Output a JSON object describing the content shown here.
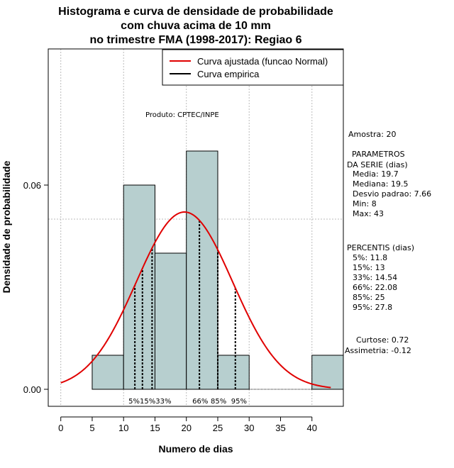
{
  "chart_data": {
    "type": "histogram",
    "title_lines": [
      "Histograma e curva de densidade de probabilidade",
      "com chuva acima de 10 mm",
      "no trimestre FMA (1998-2017): Regiao 6"
    ],
    "xlabel": "Numero de dias",
    "ylabel": "Densidade de probabilidade",
    "xlim": [
      -2,
      45
    ],
    "ylim": [
      -0.005,
      0.1
    ],
    "x_ticks": [
      0,
      5,
      10,
      15,
      20,
      25,
      30,
      35,
      40
    ],
    "x_tick_labels": [
      "0",
      "5",
      "10",
      "15",
      "20",
      "25",
      "30",
      "35",
      "40"
    ],
    "y_ticks": [
      0.0,
      0.06
    ],
    "y_tick_labels": [
      "0.00",
      "0.06"
    ],
    "grid_x": [
      0,
      10,
      20,
      30,
      40
    ],
    "grid_y": [
      0.05,
      0.1
    ],
    "bins": [
      {
        "start": 5,
        "end": 10,
        "density": 0.01
      },
      {
        "start": 10,
        "end": 15,
        "density": 0.06
      },
      {
        "start": 15,
        "end": 20,
        "density": 0.04
      },
      {
        "start": 20,
        "end": 25,
        "density": 0.07
      },
      {
        "start": 25,
        "end": 30,
        "density": 0.01
      },
      {
        "start": 40,
        "end": 45,
        "density": 0.01
      }
    ],
    "bar_color": "#b7cfcf",
    "normal_curve": {
      "name": "Curva ajustada (funcao Normal)",
      "mean": 19.7,
      "sd": 7.66,
      "x_from": 0,
      "x_to": 43,
      "color": "#e00000"
    },
    "percentile_lines": [
      {
        "label": "5%",
        "value": 11.8
      },
      {
        "label": "15%",
        "value": 13
      },
      {
        "label": "33%",
        "value": 14.54
      },
      {
        "label": "66%",
        "value": 22.08
      },
      {
        "label": "85%",
        "value": 25
      },
      {
        "label": "95%",
        "value": 27.8
      }
    ],
    "legend": [
      {
        "label": "Curva ajustada (funcao Normal)",
        "color": "#e00000"
      },
      {
        "label": "Curva empirica",
        "color": "#000000"
      }
    ],
    "legend_position": "top-right",
    "source_label": "Produto: CPTEC/INPE"
  },
  "stats": {
    "sample": "Amostra: 20",
    "params_title_1": "PARAMETROS",
    "params_title_2": "DA SERIE (dias)",
    "media": "Media: 19.7",
    "mediana": "Mediana: 19.5",
    "desvio": "Desvio padrao: 7.66",
    "min": "Min: 8",
    "max": "Max: 43",
    "percentis_title": "PERCENTIS (dias)",
    "p5": "5%: 11.8",
    "p15": "15%: 13",
    "p33": "33%: 14.54",
    "p66": "66%: 22.08",
    "p85": "85%: 25",
    "p95": "95%: 27.8",
    "curtose": "Curtose: 0.72",
    "assimetria": "Assimetria: -0.12"
  }
}
